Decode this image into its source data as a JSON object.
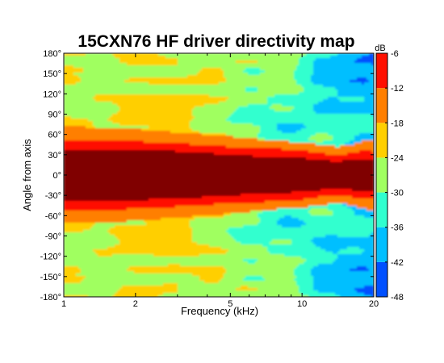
{
  "chart_data": {
    "type": "heatmap",
    "title": "15CXN76 HF driver directivity map",
    "xlabel": "Frequency (kHz)",
    "ylabel": "Angle from axis",
    "x_scale": "log",
    "xlim": [
      1,
      20
    ],
    "x_ticks": [
      1,
      2,
      5,
      10,
      20
    ],
    "x_tick_labels": [
      "1",
      "2",
      "5",
      "10",
      "20"
    ],
    "ylim": [
      -180,
      180
    ],
    "y_ticks": [
      180,
      150,
      120,
      90,
      60,
      30,
      0,
      -30,
      -60,
      -90,
      -120,
      -150,
      -180
    ],
    "y_tick_labels": [
      "180°",
      "150°",
      "120°",
      "90°",
      "60°",
      "30°",
      "0°",
      "-30°",
      "-60°",
      "-90°",
      "-120°",
      "-150°",
      "-180°"
    ],
    "colorbar": {
      "label": "dB",
      "range": [
        -48,
        -6
      ],
      "ticks": [
        -6,
        -12,
        -18,
        -24,
        -30,
        -36,
        -42,
        -48
      ],
      "tick_labels": [
        "-6",
        "-12",
        "-18",
        "-24",
        "-30",
        "-36",
        "-42",
        "-48"
      ],
      "colormap": "jet",
      "levels": [
        -48,
        -42,
        -36,
        -30,
        -24,
        -18,
        -12,
        -6
      ]
    },
    "band_colors": [
      "#00009f",
      "#0050ff",
      "#00bfff",
      "#30ffcf",
      "#a0ff60",
      "#ffcf00",
      "#ff7f00",
      "#ff1000",
      "#800000"
    ],
    "grid": false,
    "frequencies_khz": [
      1,
      1.5,
      2,
      3,
      5,
      7,
      10,
      12,
      14,
      16,
      18,
      20
    ],
    "contour_half_widths_deg": {
      "-6dB": [
        38,
        38,
        37,
        35,
        30,
        27,
        25,
        22,
        20,
        22,
        24,
        22
      ],
      "-12dB": [
        52,
        52,
        50,
        47,
        42,
        40,
        37,
        32,
        30,
        32,
        36,
        35
      ],
      "-18dB": [
        72,
        70,
        68,
        63,
        57,
        52,
        48,
        45,
        42,
        44,
        50,
        52
      ]
    }
  }
}
